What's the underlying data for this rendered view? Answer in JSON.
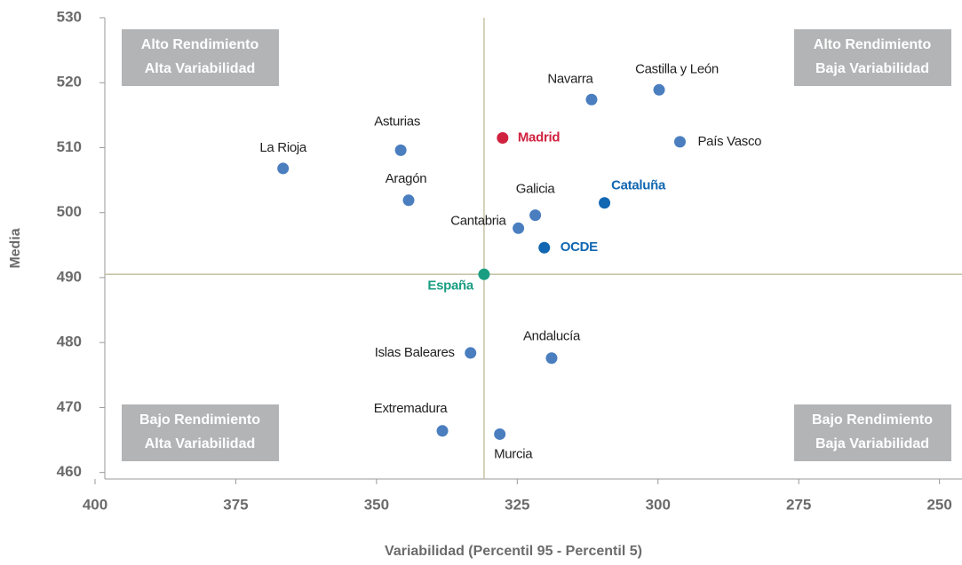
{
  "chart_data": {
    "type": "scatter",
    "xlabel": "Variabilidad  (Percentil 95 - Percentil 5)",
    "ylabel": "Media",
    "color": "#4a7ebf",
    "labels": [
      "La Rioja",
      "Asturias",
      "Aragón",
      "Madrid",
      "Navarra",
      "Castilla y León",
      "País Vasco",
      "Cataluña",
      "Galicia",
      "Cantabria",
      "OCDE",
      "España",
      "Islas Baleares",
      "Andalucía",
      "Extremadura",
      "Murcia"
    ],
    "x": [
      366.6,
      345.7,
      344.3,
      327.6,
      311.8,
      299.8,
      296.1,
      309.5,
      321.8,
      324.8,
      320.2,
      330.9,
      333.3,
      318.9,
      338.3,
      328.1
    ],
    "y": [
      506.8,
      509.6,
      501.9,
      511.5,
      517.4,
      518.9,
      510.9,
      501.5,
      499.6,
      497.6,
      494.6,
      490.5,
      478.4,
      477.6,
      466.4,
      465.9
    ],
    "colors": [
      "#4a7ebf",
      "#4a7ebf",
      "#4a7ebf",
      "#d0223f",
      "#4a7ebf",
      "#4a7ebf",
      "#4a7ebf",
      "#1167b1",
      "#4a7ebf",
      "#4a7ebf",
      "#1167b1",
      "#1a9e82",
      "#4a7ebf",
      "#4a7ebf",
      "#4a7ebf",
      "#4a7ebf"
    ],
    "xlim": [
      400,
      246
    ],
    "ylim": [
      459,
      530
    ],
    "xticks": [
      400,
      375,
      350,
      325,
      300,
      275,
      250
    ],
    "yticks": [
      460,
      470,
      480,
      490,
      500,
      510,
      520,
      530
    ],
    "quadrants": [
      [
        "Alto Rendimiento",
        "Alta Variabilidad"
      ],
      [
        "Alto Rendimiento",
        "Baja Variabilidad"
      ],
      [
        "Bajo Rendimiento",
        "Alta Variabilidad"
      ],
      [
        "Bajo Rendimiento",
        "Baja Variabilidad"
      ]
    ]
  }
}
